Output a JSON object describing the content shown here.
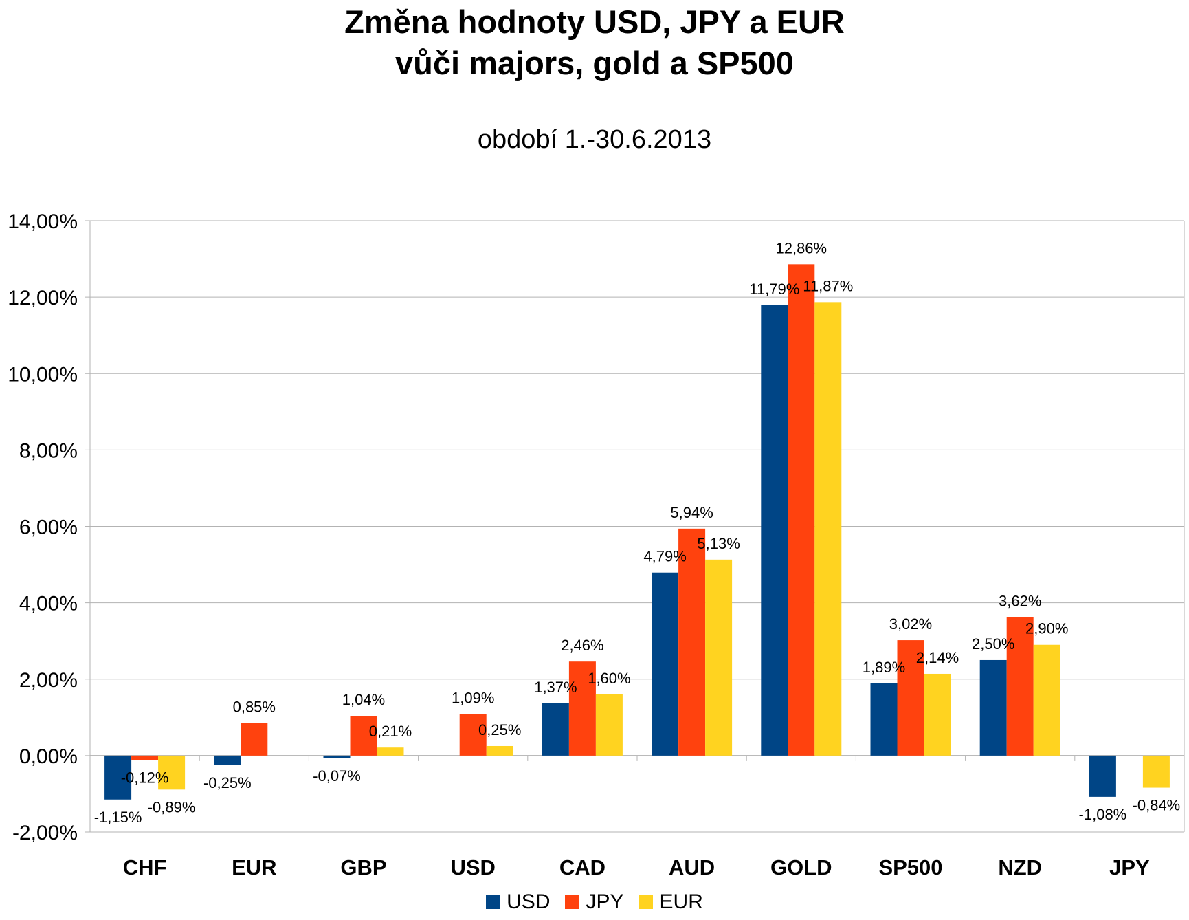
{
  "chart_data": {
    "type": "bar",
    "title_line1": "Změna hodnoty USD, JPY a EUR",
    "title_line2": "vůči majors, gold a SP500",
    "subtitle": "období 1.-30.6.2013",
    "categories": [
      "CHF",
      "EUR",
      "GBP",
      "USD",
      "CAD",
      "AUD",
      "GOLD",
      "SP500",
      "NZD",
      "JPY"
    ],
    "series": [
      {
        "name": "USD",
        "color": "#004586",
        "values": [
          -1.15,
          -0.25,
          -0.07,
          null,
          1.37,
          4.79,
          11.79,
          1.89,
          2.5,
          -1.08
        ],
        "labels": [
          "-1,15%",
          "-0,25%",
          "-0,07%",
          null,
          "1,37%",
          "4,79%",
          "11,79%",
          "1,89%",
          "2,50%",
          "-1,08%"
        ]
      },
      {
        "name": "JPY",
        "color": "#ff420e",
        "values": [
          -0.12,
          0.85,
          1.04,
          1.09,
          2.46,
          5.94,
          12.86,
          3.02,
          3.62,
          null
        ],
        "labels": [
          "-0,12%",
          "0,85%",
          "1,04%",
          "1,09%",
          "2,46%",
          "5,94%",
          "12,86%",
          "3,02%",
          "3,62%",
          null
        ]
      },
      {
        "name": "EUR",
        "color": "#ffd320",
        "values": [
          -0.89,
          null,
          0.21,
          0.25,
          1.6,
          5.13,
          11.87,
          2.14,
          2.9,
          -0.84
        ],
        "labels": [
          "-0,89%",
          null,
          "0,21%",
          "0,25%",
          "1,60%",
          "5,13%",
          "11,87%",
          "2,14%",
          "2,90%",
          "-0,84%"
        ]
      }
    ],
    "yticks": [
      -2,
      0,
      2,
      4,
      6,
      8,
      10,
      12,
      14
    ],
    "ytick_labels": [
      "-2,00%",
      "0,00%",
      "2,00%",
      "4,00%",
      "6,00%",
      "8,00%",
      "10,00%",
      "12,00%",
      "14,00%"
    ],
    "ylim": [
      -2,
      14
    ],
    "grid": "horizontal",
    "legend_position": "bottom"
  }
}
